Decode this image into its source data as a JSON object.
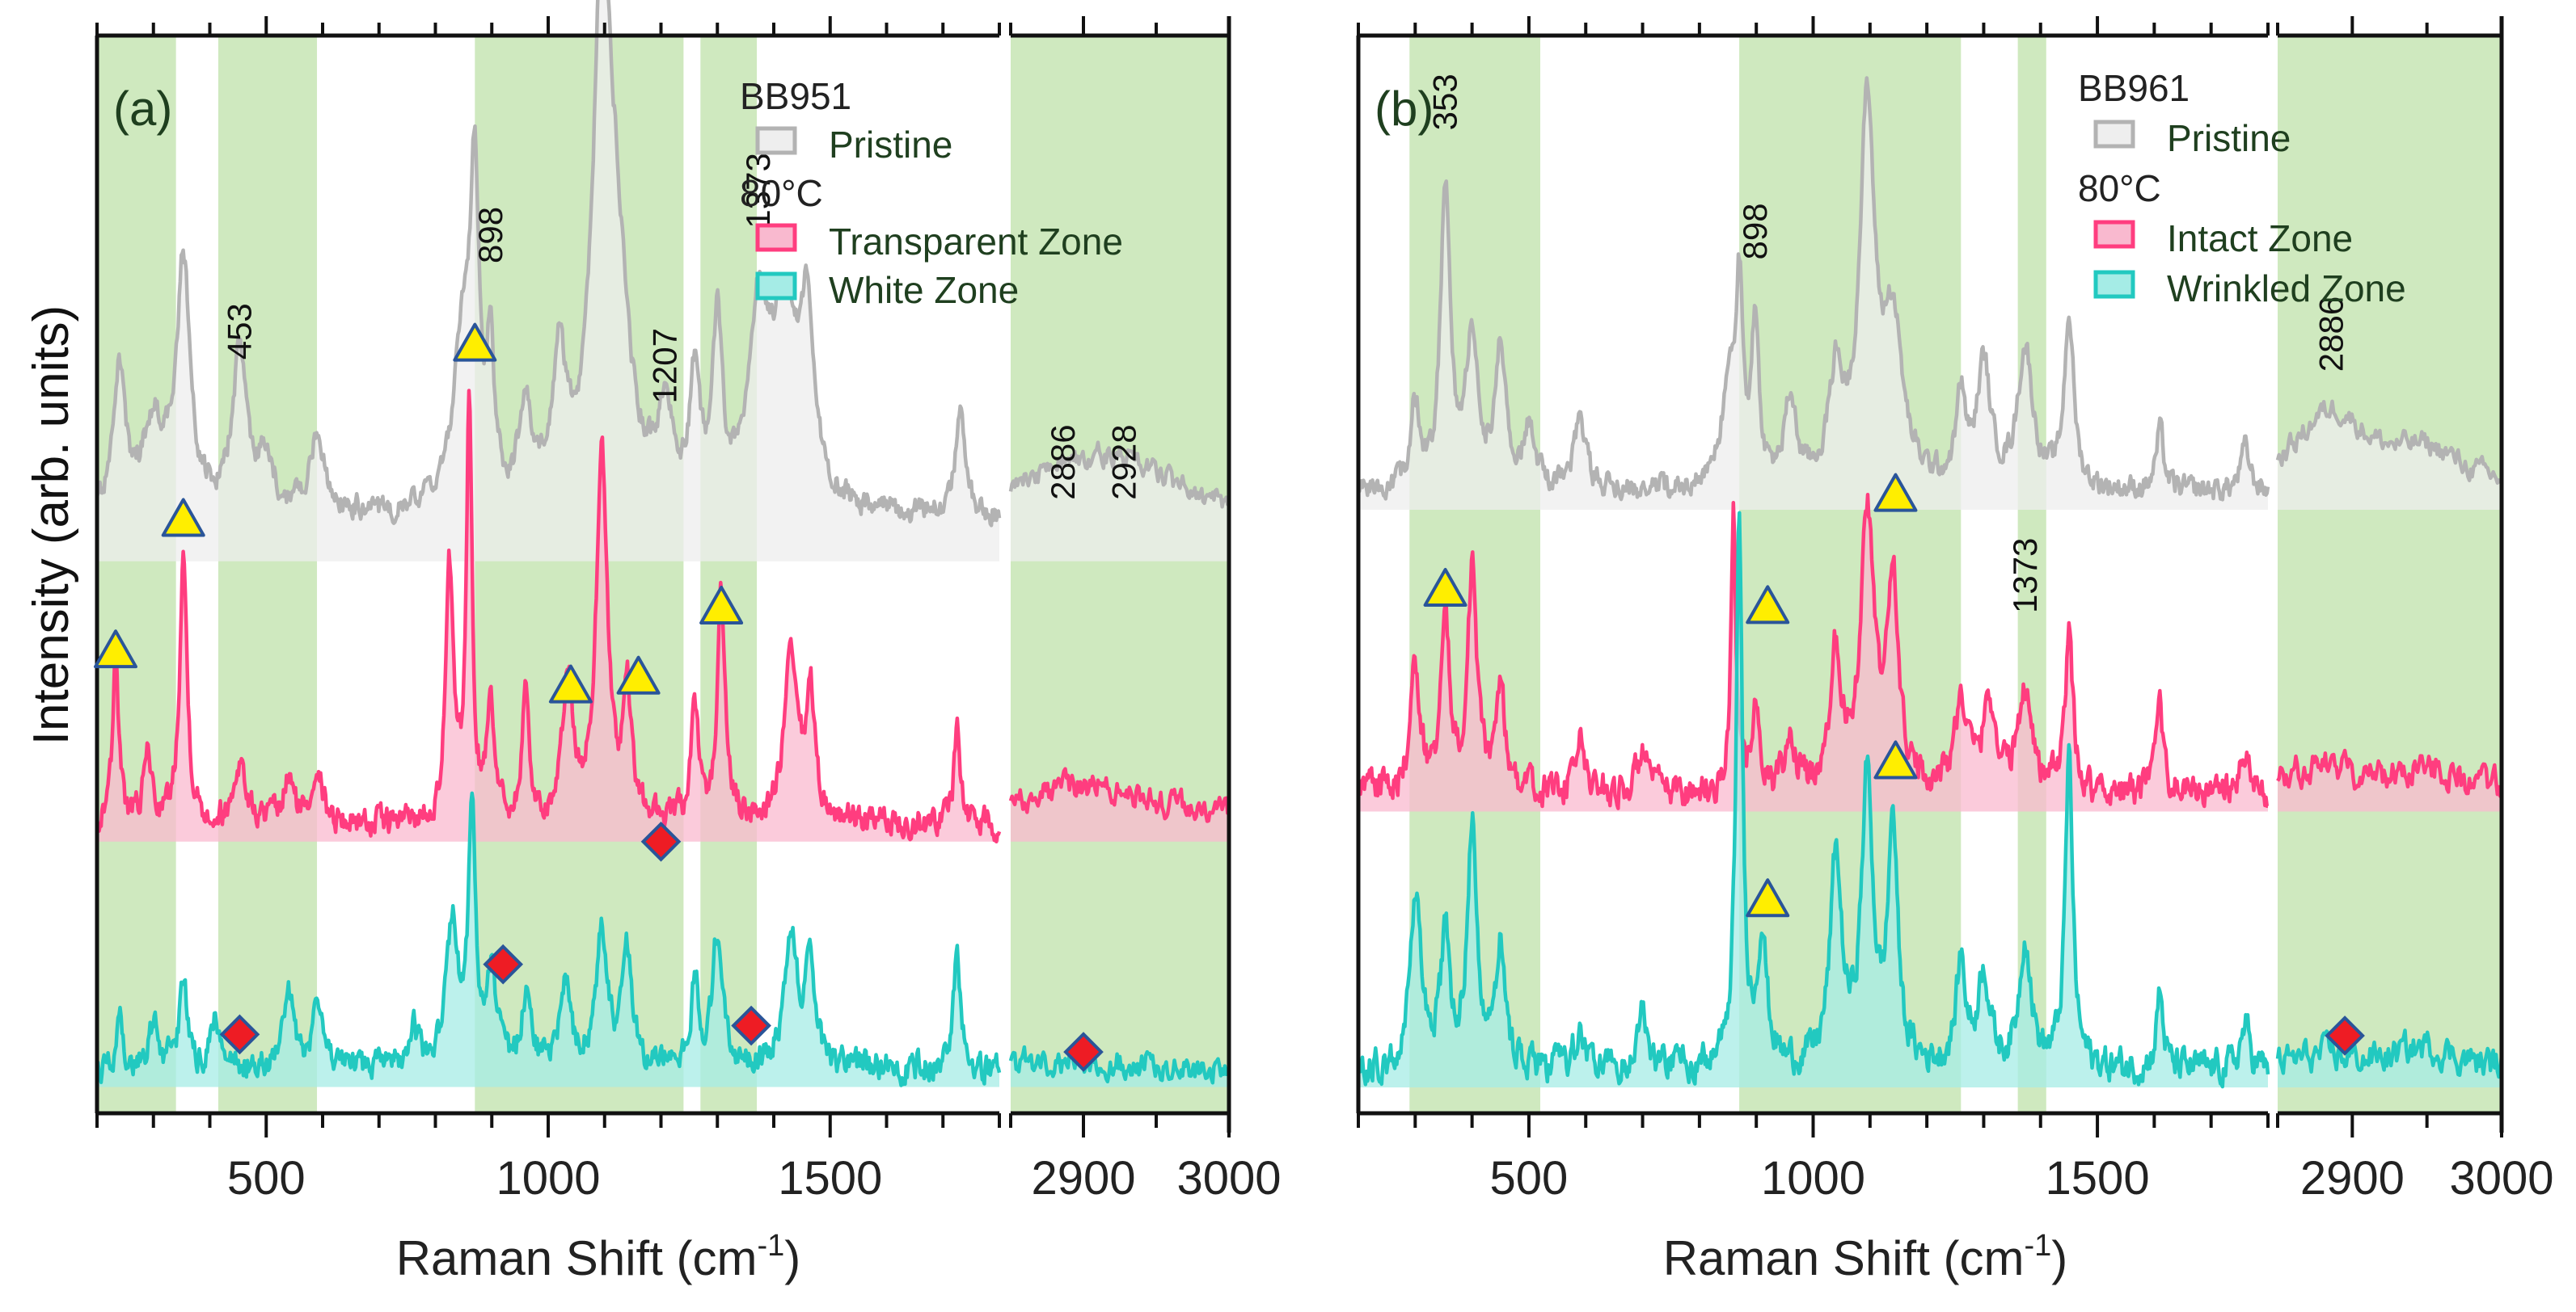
{
  "y_axis_label": "Intensity (arb. units)",
  "colors": {
    "band": "#cfe9bf",
    "pristine_line": "#b3b3b3",
    "pristine_fill": "#eeeeee",
    "pink_line": "#ff3d7f",
    "pink_fill": "#f9b9cf",
    "cyan_line": "#22c9c0",
    "cyan_fill": "#a5ece6",
    "triangle_fill": "#ffee00",
    "triangle_stroke": "#2a5599",
    "diamond_fill": "#ee1c24",
    "diamond_stroke": "#2a5599",
    "label_text": "#1f3f1f"
  },
  "chart_data": [
    {
      "type": "line",
      "panel_label": "(a)",
      "sample": "BB951",
      "xlabel": "Raman Shift (cm-1)",
      "xlabel_main": "Raman Shift (cm",
      "xlabel_exp": "-1",
      "xlabel_close": ")",
      "ylabel": "Intensity (arb. units)",
      "segments": [
        {
          "xlim": [
            200,
            1800
          ],
          "ticks": [
            500,
            1000,
            1500
          ],
          "tick_labels": [
            "500",
            "1000",
            "1500"
          ]
        },
        {
          "xlim": [
            2850,
            3000
          ],
          "ticks": [
            2900,
            3000
          ],
          "tick_labels": [
            "2900",
            "3000"
          ]
        }
      ],
      "legend": {
        "title": "BB951",
        "entries": [
          {
            "label": "Pristine",
            "series": "pristine"
          },
          {
            "subtitle": "80°C"
          },
          {
            "label": "Transparent Zone",
            "series": "zone1"
          },
          {
            "label": "White Zone",
            "series": "zone2"
          }
        ]
      },
      "bands": [
        [
          200,
          340
        ],
        [
          415,
          590
        ],
        [
          870,
          1240
        ],
        [
          1270,
          1370
        ],
        [
          2850,
          3000
        ]
      ],
      "series": [
        {
          "key": "pristine",
          "name": "Pristine",
          "offset": 0.6,
          "noise": 0.01,
          "baseline_low": 0.05,
          "peaks": [
            [
              240,
              0.16,
              12
            ],
            [
              300,
              0.1,
              25
            ],
            [
              353,
              0.28,
              14
            ],
            [
              453,
              0.18,
              16
            ],
            [
              500,
              0.06,
              15
            ],
            [
              590,
              0.09,
              15
            ],
            [
              850,
              0.2,
              20
            ],
            [
              870,
              0.32,
              9
            ],
            [
              898,
              0.16,
              8
            ],
            [
              960,
              0.12,
              12
            ],
            [
              1020,
              0.16,
              15
            ],
            [
              1095,
              0.55,
              18
            ],
            [
              1120,
              0.24,
              26
            ],
            [
              1207,
              0.1,
              15
            ],
            [
              1260,
              0.14,
              10
            ],
            [
              1300,
              0.2,
              10
            ],
            [
              1373,
              0.2,
              20
            ],
            [
              1420,
              0.22,
              30
            ],
            [
              1460,
              0.18,
              14
            ],
            [
              1730,
              0.12,
              9
            ],
            [
              2886,
              0.04,
              40
            ],
            [
              2928,
              0.05,
              40
            ]
          ]
        },
        {
          "key": "zone1",
          "name": "Transparent Zone",
          "offset": 0.28,
          "noise": 0.012,
          "baseline_low": 0.02,
          "peaks": [
            [
              233,
              0.19,
              6
            ],
            [
              290,
              0.08,
              8
            ],
            [
              353,
              0.31,
              8
            ],
            [
              453,
              0.07,
              12
            ],
            [
              540,
              0.05,
              10
            ],
            [
              590,
              0.07,
              10
            ],
            [
              825,
              0.28,
              8
            ],
            [
              860,
              0.47,
              6
            ],
            [
              898,
              0.14,
              8
            ],
            [
              960,
              0.15,
              7
            ],
            [
              1035,
              0.17,
              10
            ],
            [
              1095,
              0.42,
              12
            ],
            [
              1140,
              0.14,
              9
            ],
            [
              1260,
              0.12,
              8
            ],
            [
              1307,
              0.26,
              8
            ],
            [
              1430,
              0.18,
              14
            ],
            [
              1465,
              0.14,
              10
            ],
            [
              1725,
              0.11,
              7
            ],
            [
              2900,
              0.045,
              60
            ]
          ]
        },
        {
          "key": "zone2",
          "name": "White Zone",
          "offset": 0.0,
          "noise": 0.012,
          "baseline_low": 0.02,
          "peaks": [
            [
              240,
              0.05,
              8
            ],
            [
              300,
              0.05,
              10
            ],
            [
              353,
              0.1,
              8
            ],
            [
              410,
              0.06,
              10
            ],
            [
              540,
              0.08,
              12
            ],
            [
              590,
              0.06,
              12
            ],
            [
              760,
              0.05,
              10
            ],
            [
              830,
              0.16,
              12
            ],
            [
              865,
              0.28,
              8
            ],
            [
              900,
              0.1,
              10
            ],
            [
              960,
              0.08,
              10
            ],
            [
              1030,
              0.1,
              10
            ],
            [
              1095,
              0.15,
              12
            ],
            [
              1140,
              0.13,
              10
            ],
            [
              1260,
              0.1,
              8
            ],
            [
              1300,
              0.15,
              10
            ],
            [
              1430,
              0.15,
              14
            ],
            [
              1465,
              0.12,
              10
            ],
            [
              1725,
              0.14,
              7
            ],
            [
              2900,
              0.01,
              60
            ]
          ]
        }
      ],
      "peak_labels": [
        {
          "x": 453,
          "y": 0.83,
          "text": "453"
        },
        {
          "x": 898,
          "y": 0.94,
          "text": "898"
        },
        {
          "x": 1207,
          "y": 0.78,
          "text": "1207"
        },
        {
          "x": 1373,
          "y": 0.98,
          "text": "1373"
        },
        {
          "x": 2886,
          "y": 0.67,
          "text": "2886"
        },
        {
          "x": 2928,
          "y": 0.67,
          "text": "2928"
        }
      ],
      "triangles": [
        [
          233,
          0.5
        ],
        [
          353,
          0.65
        ],
        [
          870,
          0.85
        ],
        [
          1040,
          0.46
        ],
        [
          1160,
          0.47
        ],
        [
          1307,
          0.55
        ]
      ],
      "diamonds": [
        [
          453,
          0.06
        ],
        [
          920,
          0.14
        ],
        [
          1200,
          0.28
        ],
        [
          1360,
          0.07
        ],
        [
          2900,
          0.04
        ]
      ],
      "ylim": [
        -0.03,
        1.2
      ]
    },
    {
      "type": "line",
      "panel_label": "(b)",
      "sample": "BB961",
      "xlabel": "Raman Shift (cm-1)",
      "xlabel_main": "Raman Shift (cm",
      "xlabel_exp": "-1",
      "xlabel_close": ")",
      "ylabel": "Intensity (arb. units)",
      "segments": [
        {
          "xlim": [
            200,
            1800
          ],
          "ticks": [
            500,
            1000,
            1500
          ],
          "tick_labels": [
            "500",
            "1000",
            "1500"
          ]
        },
        {
          "xlim": [
            2850,
            3000
          ],
          "ticks": [
            2900,
            3000
          ],
          "tick_labels": [
            "2900",
            "3000"
          ]
        }
      ],
      "legend": {
        "title": "BB961",
        "entries": [
          {
            "label": "Pristine",
            "series": "pristine"
          },
          {
            "subtitle": "80°C"
          },
          {
            "label": "Intact Zone",
            "series": "zone1"
          },
          {
            "label": "Wrinkled Zone",
            "series": "zone2"
          }
        ]
      },
      "bands": [
        [
          290,
          520
        ],
        [
          870,
          1260
        ],
        [
          1360,
          1410
        ],
        [
          2850,
          3000
        ]
      ],
      "series": [
        {
          "key": "pristine",
          "name": "Pristine",
          "offset": 0.67,
          "noise": 0.01,
          "baseline_low": 0.02,
          "peaks": [
            [
              300,
              0.1,
              10
            ],
            [
              353,
              0.35,
              10
            ],
            [
              400,
              0.18,
              12
            ],
            [
              450,
              0.16,
              12
            ],
            [
              500,
              0.07,
              12
            ],
            [
              590,
              0.08,
              12
            ],
            [
              850,
              0.1,
              15
            ],
            [
              870,
              0.22,
              8
            ],
            [
              898,
              0.18,
              8
            ],
            [
              960,
              0.1,
              12
            ],
            [
              1040,
              0.12,
              15
            ],
            [
              1095,
              0.43,
              16
            ],
            [
              1140,
              0.18,
              20
            ],
            [
              1260,
              0.1,
              10
            ],
            [
              1300,
              0.14,
              14
            ],
            [
              1373,
              0.16,
              16
            ],
            [
              1450,
              0.2,
              10
            ],
            [
              1610,
              0.07,
              8
            ],
            [
              1760,
              0.05,
              10
            ],
            [
              2886,
              0.09,
              30
            ],
            [
              2950,
              0.04,
              30
            ]
          ]
        },
        {
          "key": "zone1",
          "name": "Intact Zone",
          "offset": 0.32,
          "noise": 0.014,
          "baseline_low": 0.02,
          "peaks": [
            [
              300,
              0.14,
              10
            ],
            [
              353,
              0.18,
              10
            ],
            [
              400,
              0.25,
              10
            ],
            [
              450,
              0.12,
              10
            ],
            [
              590,
              0.06,
              10
            ],
            [
              700,
              0.05,
              10
            ],
            [
              860,
              0.33,
              5
            ],
            [
              898,
              0.1,
              8
            ],
            [
              960,
              0.06,
              10
            ],
            [
              1040,
              0.16,
              12
            ],
            [
              1095,
              0.32,
              14
            ],
            [
              1140,
              0.24,
              12
            ],
            [
              1260,
              0.1,
              14
            ],
            [
              1310,
              0.1,
              14
            ],
            [
              1373,
              0.12,
              14
            ],
            [
              1450,
              0.18,
              8
            ],
            [
              1610,
              0.09,
              8
            ],
            [
              1760,
              0.04,
              10
            ],
            [
              2880,
              0.03,
              30
            ],
            [
              2950,
              0.03,
              25
            ]
          ]
        },
        {
          "key": "zone2",
          "name": "Wrinkled Zone",
          "offset": 0.0,
          "noise": 0.014,
          "baseline_low": 0.02,
          "peaks": [
            [
              300,
              0.2,
              12
            ],
            [
              353,
              0.14,
              10
            ],
            [
              400,
              0.28,
              10
            ],
            [
              450,
              0.14,
              10
            ],
            [
              590,
              0.05,
              10
            ],
            [
              700,
              0.06,
              10
            ],
            [
              870,
              0.62,
              7
            ],
            [
              910,
              0.15,
              10
            ],
            [
              1040,
              0.24,
              12
            ],
            [
              1095,
              0.33,
              12
            ],
            [
              1140,
              0.28,
              10
            ],
            [
              1260,
              0.12,
              10
            ],
            [
              1300,
              0.11,
              12
            ],
            [
              1373,
              0.15,
              12
            ],
            [
              1450,
              0.36,
              8
            ],
            [
              1610,
              0.09,
              7
            ],
            [
              1760,
              0.05,
              10
            ],
            [
              2880,
              0.015,
              30
            ],
            [
              2950,
              0.025,
              25
            ]
          ]
        }
      ],
      "peak_labels": [
        {
          "x": 353,
          "y": 1.11,
          "text": "353"
        },
        {
          "x": 898,
          "y": 0.96,
          "text": "898"
        },
        {
          "x": 1373,
          "y": 0.55,
          "text": "1373"
        },
        {
          "x": 2886,
          "y": 0.83,
          "text": "2886"
        }
      ],
      "triangles": [
        [
          353,
          0.58
        ],
        [
          920,
          0.56
        ],
        [
          1145,
          0.69
        ],
        [
          1145,
          0.38
        ],
        [
          920,
          0.22
        ]
      ],
      "diamonds": [
        [
          2895,
          0.06
        ]
      ],
      "ylim": [
        -0.03,
        1.22
      ]
    }
  ]
}
